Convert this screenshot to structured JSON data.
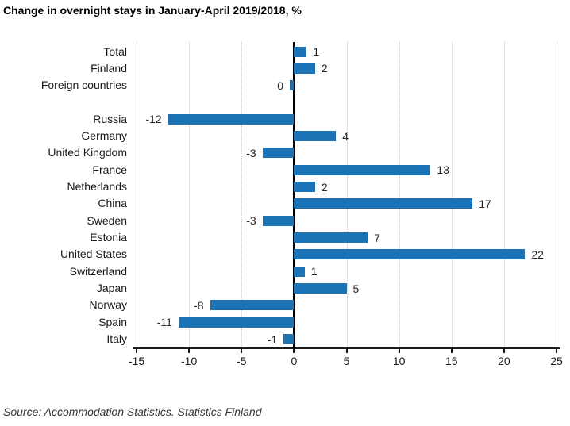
{
  "chart_data": {
    "type": "bar",
    "orientation": "horizontal",
    "title": "Change in overnight stays in January-April 2019/2018, %",
    "source": "Source: Accommodation Statistics. Statistics Finland",
    "xlabel": "",
    "ylabel": "",
    "xlim": [
      -15,
      25
    ],
    "xticks": [
      -15,
      -10,
      -5,
      0,
      5,
      10,
      15,
      20,
      25
    ],
    "grid": true,
    "bar_color": "#1b73b5",
    "grid_color": "#c6c6c6",
    "groups": [
      {
        "name": "totals",
        "items": [
          {
            "label": "Total",
            "value": 1.2,
            "value_label": "1"
          },
          {
            "label": "Finland",
            "value": 2,
            "value_label": "2"
          },
          {
            "label": "Foreign countries",
            "value": -0.4,
            "value_label": "0"
          }
        ]
      },
      {
        "name": "countries",
        "items": [
          {
            "label": "Russia",
            "value": -12,
            "value_label": "-12"
          },
          {
            "label": "Germany",
            "value": 4,
            "value_label": "4"
          },
          {
            "label": "United Kingdom",
            "value": -3,
            "value_label": "-3"
          },
          {
            "label": "France",
            "value": 13,
            "value_label": "13"
          },
          {
            "label": "Netherlands",
            "value": 2,
            "value_label": "2"
          },
          {
            "label": "China",
            "value": 17,
            "value_label": "17"
          },
          {
            "label": "Sweden",
            "value": -3,
            "value_label": "-3"
          },
          {
            "label": "Estonia",
            "value": 7,
            "value_label": "7"
          },
          {
            "label": "United States",
            "value": 22,
            "value_label": "22"
          },
          {
            "label": "Switzerland",
            "value": 1,
            "value_label": "1"
          },
          {
            "label": "Japan",
            "value": 5,
            "value_label": "5"
          },
          {
            "label": "Norway",
            "value": -8,
            "value_label": "-8"
          },
          {
            "label": "Spain",
            "value": -11,
            "value_label": "-11"
          },
          {
            "label": "Italy",
            "value": -1,
            "value_label": "-1"
          }
        ]
      }
    ]
  }
}
